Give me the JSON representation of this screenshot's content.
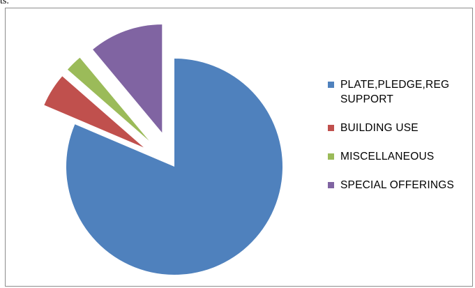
{
  "caption": "ts.",
  "chart_data": {
    "type": "pie",
    "title": "",
    "exploded": true,
    "legend_position": "right",
    "categories": [
      "PLATE,PLEDGE,REG SUPPORT",
      "BUILDING USE",
      "MISCELLANEOUS",
      "SPECIAL OFFERINGS"
    ],
    "values": [
      81,
      5,
      2.5,
      11
    ],
    "colors": [
      "#4f81bd",
      "#c0504d",
      "#9bbb59",
      "#8064a2"
    ],
    "legend_labels": [
      "PLATE,PLEDGE,REG\nSUPPORT",
      "BUILDING USE",
      "MISCELLANEOUS",
      "SPECIAL OFFERINGS"
    ]
  }
}
